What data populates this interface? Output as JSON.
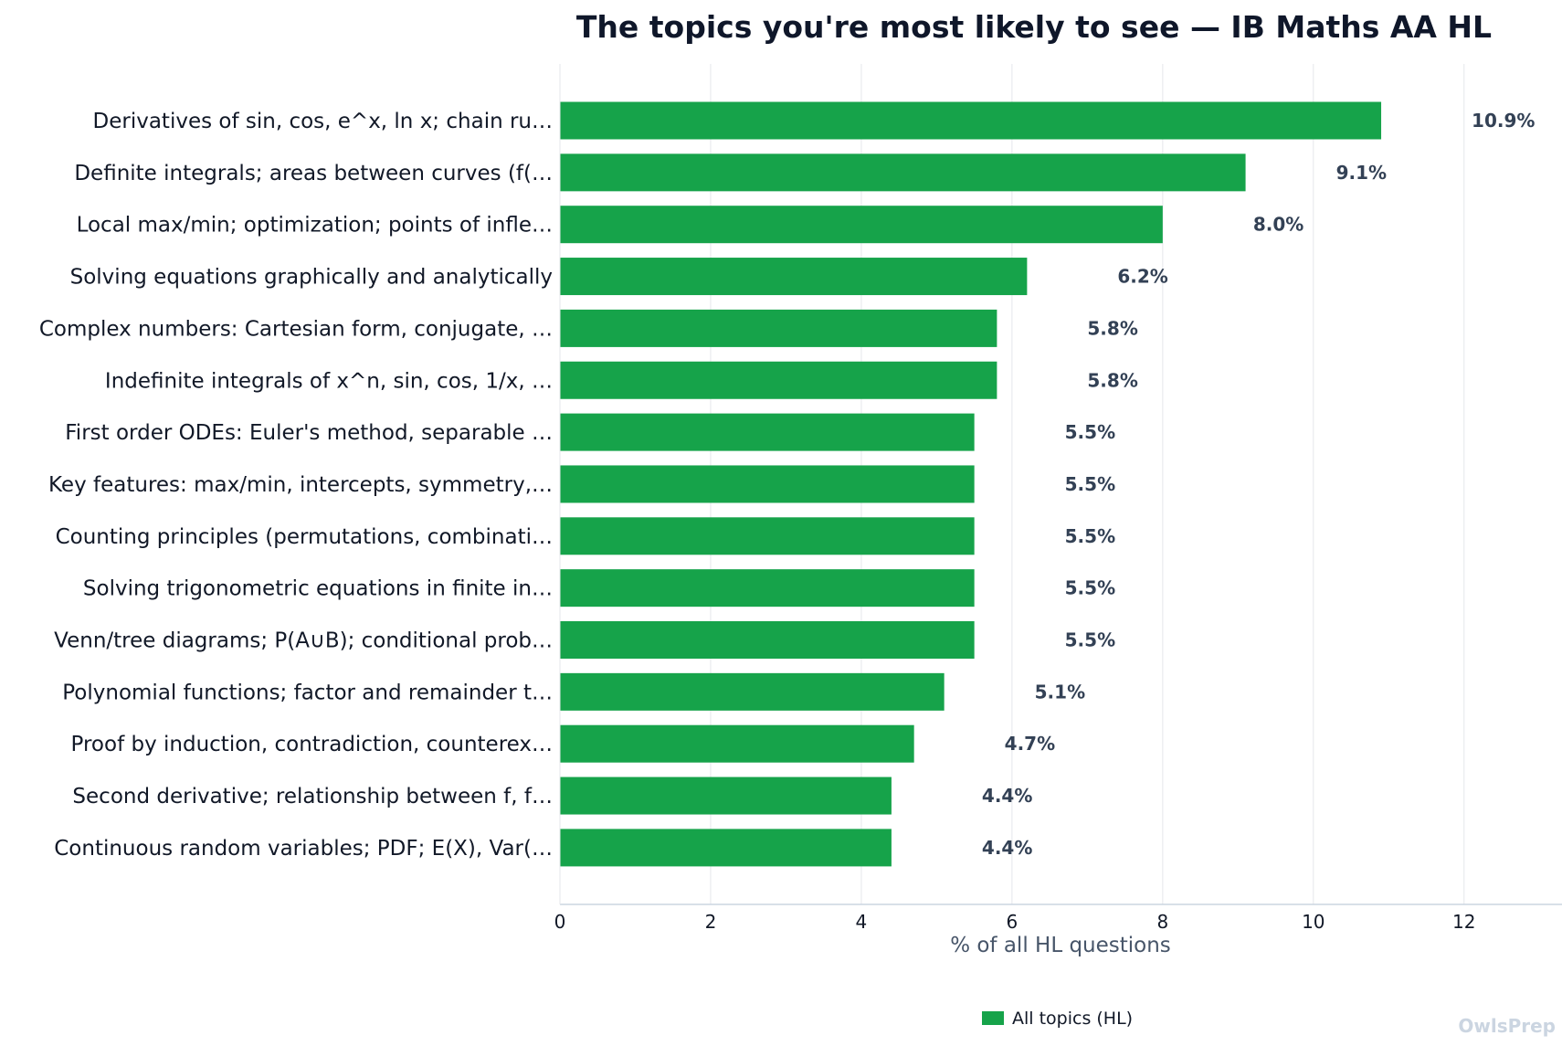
{
  "chart_data": {
    "type": "bar",
    "orientation": "horizontal",
    "title": "The topics you're most likely to see — IB Maths AA HL",
    "xlabel": "% of all HL questions",
    "ylabel": "",
    "xlim": [
      0,
      13.3
    ],
    "ticks": [
      0,
      2,
      4,
      6,
      8,
      10,
      12
    ],
    "tick_labels": [
      "0",
      "2",
      "4",
      "6",
      "8",
      "10",
      "12"
    ],
    "grid": "vertical",
    "legend_position": "bottom-center",
    "categories": [
      "Derivatives of sin, cos, e^x, ln x; chain ru…",
      "Definite integrals; areas between curves (f(…",
      "Local max/min; optimization; points of infle…",
      "Solving equations graphically and analytically",
      "Complex numbers: Cartesian form, conjugate, …",
      "Indefinite integrals of x^n, sin, cos, 1/x, …",
      "First order ODEs: Euler's method, separable …",
      "Key features: max/min, intercepts, symmetry,…",
      "Counting principles (permutations, combinati…",
      "Solving trigonometric equations in finite in…",
      "Venn/tree diagrams; P(A∪B); conditional prob…",
      "Polynomial functions; factor and remainder t…",
      "Proof by induction, contradiction, counterex…",
      "Second derivative; relationship between f, f…",
      "Continuous random variables; PDF; E(X), Var(…"
    ],
    "series": [
      {
        "name": "All topics (HL)",
        "color": "#16a34a",
        "values": [
          10.9,
          9.1,
          8.0,
          6.2,
          5.8,
          5.8,
          5.5,
          5.5,
          5.5,
          5.5,
          5.5,
          5.1,
          4.7,
          4.4,
          4.4
        ],
        "value_labels": [
          "10.9%",
          "9.1%",
          "8.0%",
          "6.2%",
          "5.8%",
          "5.8%",
          "5.5%",
          "5.5%",
          "5.5%",
          "5.5%",
          "5.5%",
          "5.1%",
          "4.7%",
          "4.4%",
          "4.4%"
        ]
      }
    ]
  },
  "watermark": "OwlsPrep",
  "colors": {
    "bar": "#16a34a",
    "grid": "#e5e7eb",
    "axis": "#cbd5e1",
    "title": "#0f172a",
    "value_label": "#334155",
    "watermark": "#cbd5e1"
  }
}
